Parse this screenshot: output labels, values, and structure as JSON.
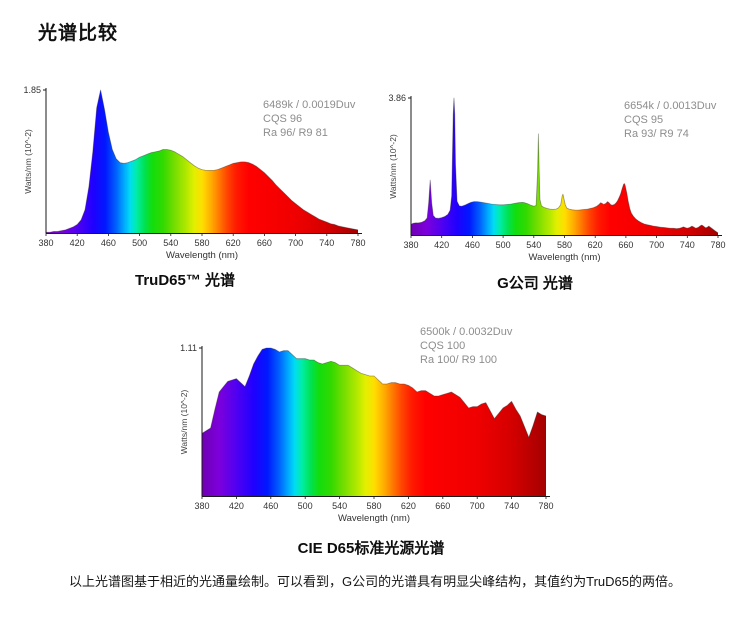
{
  "page": {
    "title": "光谱比较"
  },
  "footnote": "以上光谱图基于相近的光通量绘制。可以看到，G公司的光谱具有明显尖峰结构，其值约为TruD65的两倍。",
  "spectrum_gradient": [
    {
      "wl": 380,
      "color": "#7000b2"
    },
    {
      "wl": 400,
      "color": "#7c00dc"
    },
    {
      "wl": 420,
      "color": "#5000f0"
    },
    {
      "wl": 440,
      "color": "#2000ff"
    },
    {
      "wl": 456,
      "color": "#0018ff"
    },
    {
      "wl": 470,
      "color": "#0062ff"
    },
    {
      "wl": 480,
      "color": "#00a8ff"
    },
    {
      "wl": 488,
      "color": "#00ddf2"
    },
    {
      "wl": 496,
      "color": "#00eda8"
    },
    {
      "wl": 506,
      "color": "#00e255"
    },
    {
      "wl": 516,
      "color": "#12dd0e"
    },
    {
      "wl": 530,
      "color": "#32d900"
    },
    {
      "wl": 544,
      "color": "#72dd00"
    },
    {
      "wl": 560,
      "color": "#b2e800"
    },
    {
      "wl": 570,
      "color": "#e2ef00"
    },
    {
      "wl": 580,
      "color": "#ffdf00"
    },
    {
      "wl": 592,
      "color": "#ffab00"
    },
    {
      "wl": 602,
      "color": "#ff7800"
    },
    {
      "wl": 612,
      "color": "#ff4600"
    },
    {
      "wl": 624,
      "color": "#ff1a00"
    },
    {
      "wl": 640,
      "color": "#ff0000"
    },
    {
      "wl": 700,
      "color": "#ef0000"
    },
    {
      "wl": 740,
      "color": "#d40000"
    },
    {
      "wl": 780,
      "color": "#a40000"
    }
  ],
  "chart_data": [
    {
      "id": "trud65",
      "type": "area",
      "title": "TruD65™ 光谱",
      "xlabel": "Wavelength (nm)",
      "ylabel": "Watts/nm (10^-2)",
      "ylim": [
        0,
        1.85
      ],
      "ymax_label": "1.85",
      "xticks": [
        380,
        420,
        460,
        500,
        540,
        580,
        620,
        660,
        700,
        740,
        780
      ],
      "annotation": [
        "6489k / 0.0019Duv",
        "CQS 96",
        "Ra 96/ R9 81"
      ],
      "x": [
        380,
        385,
        390,
        395,
        400,
        405,
        410,
        415,
        420,
        425,
        430,
        435,
        440,
        445,
        450,
        455,
        460,
        465,
        470,
        475,
        480,
        485,
        490,
        495,
        500,
        505,
        510,
        515,
        520,
        525,
        530,
        535,
        540,
        545,
        550,
        555,
        560,
        565,
        570,
        575,
        580,
        585,
        590,
        595,
        600,
        605,
        610,
        615,
        620,
        625,
        630,
        635,
        640,
        645,
        650,
        655,
        660,
        665,
        670,
        675,
        680,
        685,
        690,
        695,
        700,
        705,
        710,
        715,
        720,
        725,
        730,
        735,
        740,
        745,
        750,
        755,
        760,
        765,
        770,
        775,
        780
      ],
      "values": [
        0.01,
        0.01,
        0.02,
        0.02,
        0.03,
        0.04,
        0.06,
        0.08,
        0.11,
        0.17,
        0.3,
        0.6,
        1.05,
        1.62,
        1.85,
        1.6,
        1.3,
        1.08,
        0.96,
        0.91,
        0.9,
        0.91,
        0.93,
        0.95,
        0.98,
        1.0,
        1.02,
        1.04,
        1.05,
        1.06,
        1.08,
        1.08,
        1.07,
        1.05,
        1.02,
        0.99,
        0.95,
        0.91,
        0.87,
        0.84,
        0.82,
        0.81,
        0.81,
        0.81,
        0.82,
        0.84,
        0.86,
        0.88,
        0.9,
        0.91,
        0.92,
        0.92,
        0.91,
        0.89,
        0.86,
        0.82,
        0.78,
        0.73,
        0.68,
        0.62,
        0.57,
        0.52,
        0.47,
        0.42,
        0.38,
        0.34,
        0.3,
        0.27,
        0.24,
        0.21,
        0.18,
        0.16,
        0.14,
        0.12,
        0.11,
        0.09,
        0.08,
        0.07,
        0.06,
        0.05,
        0.04
      ]
    },
    {
      "id": "g-company",
      "type": "area",
      "title": "G公司 光谱",
      "xlabel": "Wavelength (nm)",
      "ylabel": "Watts/nm (10^-2)",
      "ylim": [
        0,
        3.86
      ],
      "ymax_label": "3.86",
      "xticks": [
        380,
        420,
        460,
        500,
        540,
        580,
        620,
        660,
        700,
        740,
        780
      ],
      "annotation": [
        "6654k / 0.0013Duv",
        "CQS 95",
        "Ra 93/ R9 74"
      ],
      "x": [
        380,
        383,
        386,
        390,
        394,
        398,
        401,
        403,
        405,
        407,
        409,
        412,
        416,
        420,
        424,
        428,
        431,
        433,
        435,
        436,
        437,
        438,
        440,
        443,
        446,
        450,
        454,
        458,
        462,
        466,
        470,
        475,
        480,
        485,
        490,
        495,
        500,
        505,
        510,
        515,
        520,
        525,
        528,
        532,
        536,
        540,
        543,
        545,
        546,
        547,
        548,
        550,
        553,
        557,
        561,
        565,
        569,
        572,
        575,
        577,
        578,
        579,
        581,
        583,
        586,
        590,
        594,
        598,
        602,
        606,
        610,
        614,
        618,
        622,
        625,
        627,
        629,
        631,
        634,
        636,
        638,
        640,
        642,
        645,
        647,
        649,
        651,
        653,
        655,
        657,
        658,
        659,
        661,
        663,
        665,
        667,
        670,
        673,
        676,
        680,
        684,
        688,
        692,
        696,
        700,
        705,
        710,
        714,
        718,
        722,
        726,
        730,
        733,
        735,
        737,
        740,
        743,
        746,
        748,
        751,
        754,
        757,
        759,
        761,
        764,
        766,
        768,
        770,
        773,
        776,
        778,
        780
      ],
      "values": [
        0.3,
        0.33,
        0.34,
        0.34,
        0.36,
        0.4,
        0.48,
        0.9,
        1.55,
        0.9,
        0.55,
        0.48,
        0.47,
        0.49,
        0.52,
        0.58,
        0.7,
        1.1,
        3.4,
        3.86,
        3.4,
        2.0,
        0.95,
        0.82,
        0.81,
        0.84,
        0.88,
        0.92,
        0.94,
        0.94,
        0.93,
        0.91,
        0.89,
        0.87,
        0.86,
        0.85,
        0.85,
        0.86,
        0.87,
        0.89,
        0.91,
        0.92,
        0.91,
        0.88,
        0.84,
        0.81,
        0.83,
        1.8,
        2.85,
        1.8,
        1.0,
        0.82,
        0.78,
        0.75,
        0.73,
        0.72,
        0.73,
        0.76,
        0.85,
        1.1,
        1.15,
        1.05,
        0.85,
        0.76,
        0.73,
        0.71,
        0.7,
        0.7,
        0.71,
        0.72,
        0.73,
        0.75,
        0.77,
        0.81,
        0.86,
        0.91,
        0.89,
        0.86,
        0.89,
        0.94,
        0.91,
        0.86,
        0.84,
        0.86,
        0.9,
        0.96,
        1.05,
        1.15,
        1.3,
        1.43,
        1.45,
        1.4,
        1.2,
        0.95,
        0.75,
        0.62,
        0.52,
        0.45,
        0.4,
        0.35,
        0.31,
        0.29,
        0.27,
        0.25,
        0.24,
        0.22,
        0.21,
        0.2,
        0.19,
        0.19,
        0.18,
        0.19,
        0.21,
        0.23,
        0.21,
        0.19,
        0.21,
        0.25,
        0.23,
        0.19,
        0.21,
        0.26,
        0.28,
        0.25,
        0.2,
        0.22,
        0.25,
        0.22,
        0.17,
        0.12,
        0.09,
        0.06
      ]
    },
    {
      "id": "cie-d65",
      "type": "area",
      "title": "CIE D65标准光源光谱",
      "xlabel": "Wavelength (nm)",
      "ylabel": "Watts/nm (10^-2)",
      "ylim": [
        0,
        1.11
      ],
      "ymax_label": "1.11",
      "xticks": [
        380,
        420,
        460,
        500,
        540,
        580,
        620,
        660,
        700,
        740,
        780
      ],
      "annotation": [
        "6500k / 0.0032Duv",
        "CQS 100",
        "Ra 100/ R9 100"
      ],
      "x": [
        380,
        385,
        390,
        395,
        400,
        405,
        410,
        415,
        420,
        425,
        430,
        435,
        440,
        445,
        450,
        455,
        460,
        465,
        470,
        475,
        480,
        485,
        490,
        495,
        500,
        505,
        510,
        515,
        520,
        525,
        530,
        535,
        540,
        545,
        550,
        555,
        560,
        565,
        570,
        575,
        580,
        585,
        590,
        595,
        600,
        605,
        610,
        615,
        620,
        625,
        630,
        635,
        640,
        645,
        650,
        655,
        660,
        665,
        670,
        675,
        680,
        685,
        690,
        695,
        700,
        705,
        710,
        715,
        720,
        725,
        730,
        735,
        740,
        745,
        750,
        755,
        760,
        765,
        770,
        775,
        780
      ],
      "values": [
        0.47,
        0.49,
        0.51,
        0.65,
        0.78,
        0.82,
        0.86,
        0.87,
        0.88,
        0.85,
        0.82,
        0.9,
        0.99,
        1.05,
        1.1,
        1.11,
        1.11,
        1.1,
        1.08,
        1.09,
        1.09,
        1.06,
        1.03,
        1.03,
        1.03,
        1.02,
        1.02,
        1.0,
        0.99,
        1.0,
        1.01,
        1.0,
        0.98,
        0.98,
        0.98,
        0.96,
        0.94,
        0.92,
        0.91,
        0.9,
        0.9,
        0.87,
        0.84,
        0.84,
        0.85,
        0.85,
        0.84,
        0.84,
        0.83,
        0.81,
        0.78,
        0.79,
        0.79,
        0.77,
        0.75,
        0.75,
        0.76,
        0.77,
        0.78,
        0.76,
        0.74,
        0.7,
        0.66,
        0.67,
        0.67,
        0.69,
        0.7,
        0.64,
        0.58,
        0.62,
        0.66,
        0.68,
        0.71,
        0.65,
        0.6,
        0.52,
        0.44,
        0.53,
        0.63,
        0.61,
        0.6
      ]
    }
  ]
}
